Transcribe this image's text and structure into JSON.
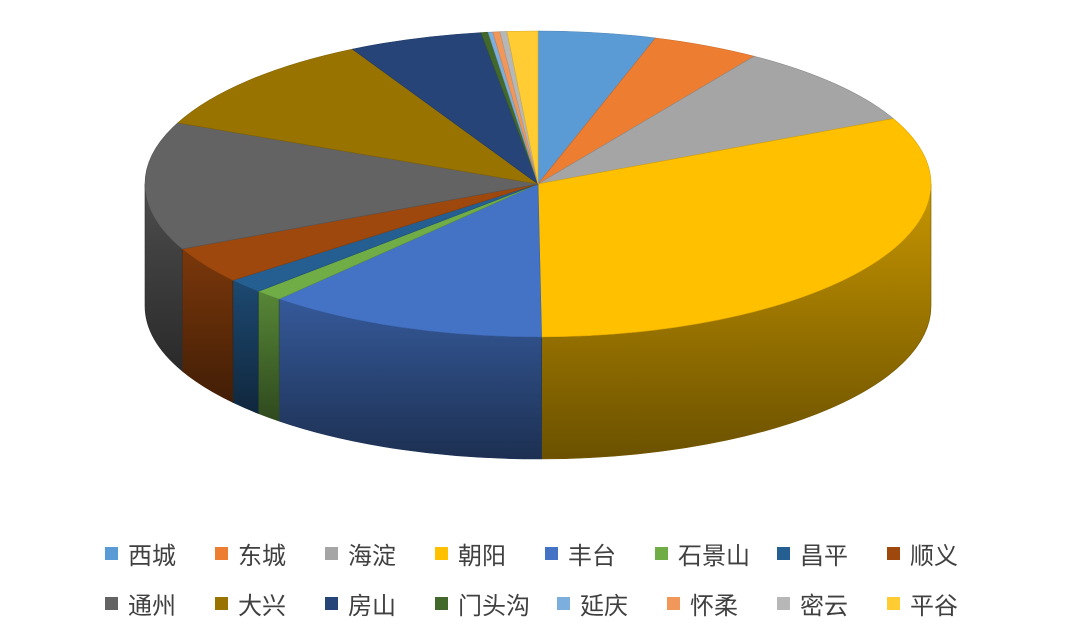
{
  "chart_data": {
    "type": "pie",
    "style": "3d",
    "legend_position": "bottom",
    "start_angle_deg": 0,
    "slices": [
      {
        "label": "西城",
        "value": 5.0,
        "color": "#5B9BD5"
      },
      {
        "label": "东城",
        "value": 4.6,
        "color": "#ED7D31"
      },
      {
        "label": "海淀",
        "value": 9.0,
        "color": "#A5A5A5"
      },
      {
        "label": "朝阳",
        "value": 33.0,
        "color": "#FFC000"
      },
      {
        "label": "丰台",
        "value": 12.0,
        "color": "#4472C4"
      },
      {
        "label": "石景山",
        "value": 1.2,
        "color": "#70AD47"
      },
      {
        "label": "昌平",
        "value": 1.6,
        "color": "#255E91"
      },
      {
        "label": "顺义",
        "value": 4.0,
        "color": "#9E480E"
      },
      {
        "label": "通州",
        "value": 14.0,
        "color": "#636363"
      },
      {
        "label": "大兴",
        "value": 11.0,
        "color": "#997300"
      },
      {
        "label": "房山",
        "value": 5.7,
        "color": "#264478"
      },
      {
        "label": "门头沟",
        "value": 0.3,
        "color": "#43682B"
      },
      {
        "label": "延庆",
        "value": 0.2,
        "color": "#7CAFDD"
      },
      {
        "label": "怀柔",
        "value": 0.3,
        "color": "#F1975A"
      },
      {
        "label": "密云",
        "value": 0.3,
        "color": "#B7B7B7"
      },
      {
        "label": "平谷",
        "value": 1.3,
        "color": "#FFCD33"
      }
    ]
  }
}
